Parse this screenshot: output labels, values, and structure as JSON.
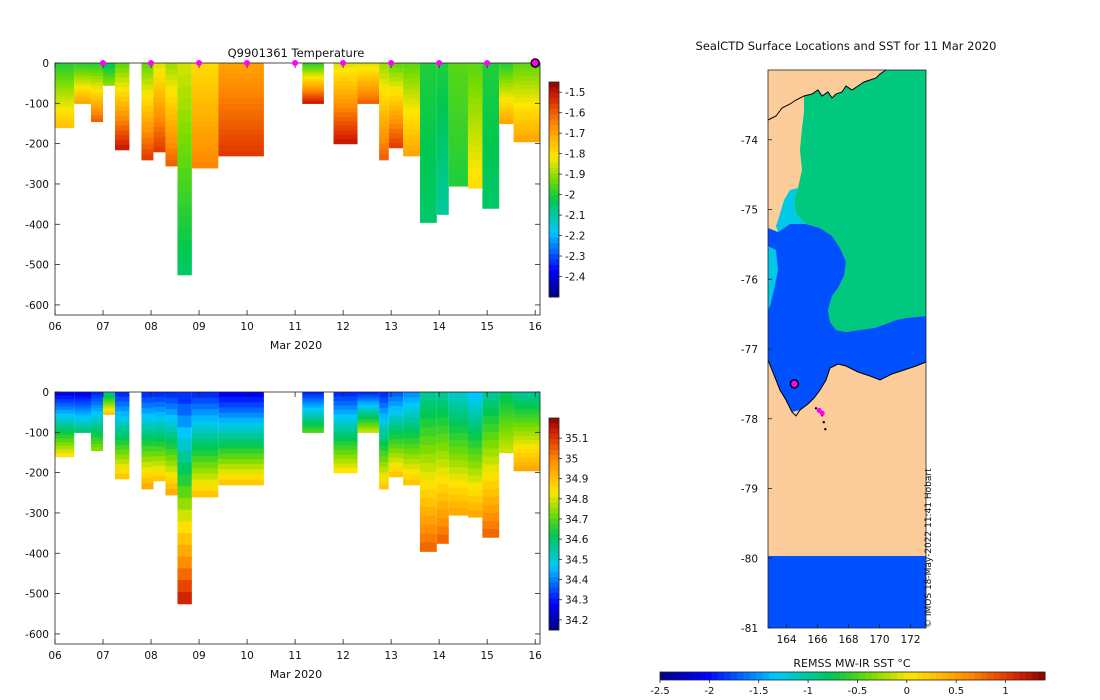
{
  "chart_data": [
    {
      "type": "heatmap",
      "panel": "temperature-section",
      "title": "Q9901361  Temperature",
      "xlabel": "Mar 2020",
      "ylabel": "",
      "x_ticks": [
        "06",
        "07",
        "08",
        "09",
        "10",
        "11",
        "12",
        "13",
        "14",
        "15",
        "16"
      ],
      "x_tick_values": [
        6,
        7,
        8,
        9,
        10,
        11,
        12,
        13,
        14,
        15,
        16
      ],
      "xlim": [
        6,
        16.1
      ],
      "ylim": [
        -625,
        0
      ],
      "y_ticks": [
        "0",
        "-100",
        "-200",
        "-300",
        "-400",
        "-500",
        "-600"
      ],
      "y_tick_values": [
        0,
        -100,
        -200,
        -300,
        -400,
        -500,
        -600
      ],
      "colorbar": {
        "min": -2.5,
        "max": -1.45,
        "ticks": [
          "-1.5",
          "-1.6",
          "-1.7",
          "-1.8",
          "-1.9",
          "-2",
          "-2.1",
          "-2.2",
          "-2.3",
          "-2.4"
        ],
        "tick_values": [
          -1.5,
          -1.6,
          -1.7,
          -1.8,
          -1.9,
          -2.0,
          -2.1,
          -2.2,
          -2.3,
          -2.4
        ]
      },
      "surface_markers_day": [
        7,
        8,
        9,
        10,
        11,
        12,
        13,
        14,
        15
      ],
      "last_marker_day": 16,
      "profiles": [
        {
          "start": 6.0,
          "end": 6.4,
          "depth": 160,
          "top": -2.0,
          "bottom": -1.75
        },
        {
          "start": 6.4,
          "end": 6.75,
          "depth": 100,
          "top": -2.0,
          "bottom": -1.7
        },
        {
          "start": 6.75,
          "end": 7.0,
          "depth": 145,
          "top": -2.0,
          "bottom": -1.6
        },
        {
          "start": 7.0,
          "end": 7.25,
          "depth": 55,
          "top": -2.05,
          "bottom": -1.9
        },
        {
          "start": 7.25,
          "end": 7.55,
          "depth": 215,
          "top": -1.95,
          "bottom": -1.5
        },
        {
          "start": 7.8,
          "end": 8.05,
          "depth": 240,
          "top": -1.95,
          "bottom": -1.55
        },
        {
          "start": 8.05,
          "end": 8.3,
          "depth": 220,
          "top": -1.85,
          "bottom": -1.55
        },
        {
          "start": 8.3,
          "end": 8.55,
          "depth": 255,
          "top": -1.9,
          "bottom": -1.6
        },
        {
          "start": 8.55,
          "end": 8.85,
          "depth": 525,
          "top": -1.85,
          "bottom": -2.05
        },
        {
          "start": 8.85,
          "end": 9.4,
          "depth": 260,
          "top": -1.8,
          "bottom": -1.65
        },
        {
          "start": 9.4,
          "end": 10.35,
          "depth": 230,
          "top": -1.7,
          "bottom": -1.55
        },
        {
          "start": 11.15,
          "end": 11.6,
          "depth": 100,
          "top": -2.0,
          "bottom": -1.5
        },
        {
          "start": 11.8,
          "end": 12.3,
          "depth": 200,
          "top": -1.85,
          "bottom": -1.5
        },
        {
          "start": 12.3,
          "end": 12.75,
          "depth": 100,
          "top": -1.85,
          "bottom": -1.6
        },
        {
          "start": 12.75,
          "end": 12.95,
          "depth": 240,
          "top": -1.9,
          "bottom": -1.6
        },
        {
          "start": 12.95,
          "end": 13.25,
          "depth": 210,
          "top": -1.95,
          "bottom": -1.55
        },
        {
          "start": 13.25,
          "end": 13.6,
          "depth": 230,
          "top": -1.95,
          "bottom": -1.7
        },
        {
          "start": 13.6,
          "end": 13.95,
          "depth": 395,
          "top": -2.0,
          "bottom": -2.05
        },
        {
          "start": 13.95,
          "end": 14.2,
          "depth": 375,
          "top": -2.0,
          "bottom": -2.1
        },
        {
          "start": 14.2,
          "end": 14.6,
          "depth": 305,
          "top": -1.95,
          "bottom": -2.0
        },
        {
          "start": 14.6,
          "end": 14.9,
          "depth": 310,
          "top": -1.95,
          "bottom": -1.8
        },
        {
          "start": 14.9,
          "end": 15.25,
          "depth": 360,
          "top": -2.0,
          "bottom": -2.05
        },
        {
          "start": 15.25,
          "end": 15.55,
          "depth": 150,
          "top": -2.0,
          "bottom": -1.7
        },
        {
          "start": 15.55,
          "end": 16.1,
          "depth": 195,
          "top": -1.95,
          "bottom": -1.7
        }
      ]
    },
    {
      "type": "heatmap",
      "panel": "salinity-section",
      "title": "",
      "xlabel": "Mar 2020",
      "ylabel": "",
      "x_ticks": [
        "06",
        "07",
        "08",
        "09",
        "10",
        "11",
        "12",
        "13",
        "14",
        "15",
        "16"
      ],
      "x_tick_values": [
        6,
        7,
        8,
        9,
        10,
        11,
        12,
        13,
        14,
        15,
        16
      ],
      "xlim": [
        6,
        16.1
      ],
      "ylim": [
        -625,
        0
      ],
      "y_ticks": [
        "0",
        "-100",
        "-200",
        "-300",
        "-400",
        "-500",
        "-600"
      ],
      "y_tick_values": [
        0,
        -100,
        -200,
        -300,
        -400,
        -500,
        -600
      ],
      "colorbar": {
        "min": 34.15,
        "max": 35.2,
        "ticks": [
          "35.1",
          "35",
          "34.9",
          "34.8",
          "34.7",
          "34.6",
          "34.5",
          "34.4",
          "34.3",
          "34.2"
        ],
        "tick_values": [
          35.1,
          35.0,
          34.9,
          34.8,
          34.7,
          34.6,
          34.5,
          34.4,
          34.3,
          34.2
        ]
      },
      "profiles": [
        {
          "start": 6.0,
          "end": 6.4,
          "depth": 160,
          "top": 34.25,
          "bottom": 34.85
        },
        {
          "start": 6.4,
          "end": 6.75,
          "depth": 100,
          "top": 34.25,
          "bottom": 34.6
        },
        {
          "start": 6.75,
          "end": 7.0,
          "depth": 145,
          "top": 34.3,
          "bottom": 34.75
        },
        {
          "start": 7.0,
          "end": 7.25,
          "depth": 55,
          "top": 34.55,
          "bottom": 34.9
        },
        {
          "start": 7.25,
          "end": 7.55,
          "depth": 215,
          "top": 34.3,
          "bottom": 34.9
        },
        {
          "start": 7.8,
          "end": 8.05,
          "depth": 240,
          "top": 34.3,
          "bottom": 34.95
        },
        {
          "start": 8.05,
          "end": 8.3,
          "depth": 220,
          "top": 34.3,
          "bottom": 34.9
        },
        {
          "start": 8.3,
          "end": 8.55,
          "depth": 255,
          "top": 34.3,
          "bottom": 34.95
        },
        {
          "start": 8.55,
          "end": 8.85,
          "depth": 525,
          "top": 34.3,
          "bottom": 35.15
        },
        {
          "start": 8.85,
          "end": 9.4,
          "depth": 260,
          "top": 34.3,
          "bottom": 34.9
        },
        {
          "start": 9.4,
          "end": 10.35,
          "depth": 230,
          "top": 34.25,
          "bottom": 34.9
        },
        {
          "start": 11.15,
          "end": 11.6,
          "depth": 100,
          "top": 34.3,
          "bottom": 34.7
        },
        {
          "start": 11.8,
          "end": 12.3,
          "depth": 200,
          "top": 34.3,
          "bottom": 34.85
        },
        {
          "start": 12.3,
          "end": 12.75,
          "depth": 100,
          "top": 34.3,
          "bottom": 34.8
        },
        {
          "start": 12.75,
          "end": 12.95,
          "depth": 240,
          "top": 34.3,
          "bottom": 34.9
        },
        {
          "start": 12.95,
          "end": 13.25,
          "depth": 210,
          "top": 34.35,
          "bottom": 34.9
        },
        {
          "start": 13.25,
          "end": 13.6,
          "depth": 230,
          "top": 34.4,
          "bottom": 34.9
        },
        {
          "start": 13.6,
          "end": 13.95,
          "depth": 395,
          "top": 34.55,
          "bottom": 35.05
        },
        {
          "start": 13.95,
          "end": 14.2,
          "depth": 375,
          "top": 34.55,
          "bottom": 35.05
        },
        {
          "start": 14.2,
          "end": 14.6,
          "depth": 305,
          "top": 34.5,
          "bottom": 34.95
        },
        {
          "start": 14.6,
          "end": 14.9,
          "depth": 310,
          "top": 34.45,
          "bottom": 34.95
        },
        {
          "start": 14.9,
          "end": 15.25,
          "depth": 360,
          "top": 34.55,
          "bottom": 35.05
        },
        {
          "start": 15.25,
          "end": 15.55,
          "depth": 150,
          "top": 34.6,
          "bottom": 34.8
        },
        {
          "start": 15.55,
          "end": 16.1,
          "depth": 195,
          "top": 34.55,
          "bottom": 34.95
        }
      ]
    },
    {
      "type": "heatmap",
      "panel": "sst-map",
      "title": "SealCTD Surface Locations and SST for 11 Mar 2020",
      "colorbar_label": "REMSS MW-IR SST °C",
      "credit": "© IMOS 18-May-2022 11:41 Hobart",
      "xlim": [
        162.8,
        173.0
      ],
      "ylim": [
        -81.0,
        -73.0
      ],
      "x_ticks": [
        "164",
        "166",
        "168",
        "170",
        "172"
      ],
      "x_tick_values": [
        164,
        166,
        168,
        170,
        172
      ],
      "y_ticks": [
        "-74",
        "-75",
        "-76",
        "-77",
        "-78",
        "-79",
        "-80",
        "-81"
      ],
      "y_tick_values": [
        -74,
        -75,
        -76,
        -77,
        -78,
        -79,
        -80,
        -81
      ],
      "colorbar": {
        "min": -2.5,
        "max": 1.4,
        "ticks": [
          "-2.5",
          "-2",
          "-1.5",
          "-1",
          "-0.5",
          "0",
          "0.5",
          "1"
        ],
        "tick_values": [
          -2.5,
          -2.0,
          -1.5,
          -1.0,
          -0.5,
          0.0,
          0.5,
          1.0
        ]
      },
      "regions": [
        {
          "name": "open-water-north",
          "sst": -0.9
        },
        {
          "name": "cold-ice-edge",
          "sst": -1.75
        },
        {
          "name": "southern-band",
          "sst": -1.75
        }
      ],
      "seal_track": {
        "lon": [
          165.9,
          166.1,
          166.3,
          166.4,
          166.5
        ],
        "lat": [
          -77.85,
          -77.9,
          -77.95,
          -78.05,
          -78.15
        ]
      },
      "seal_surface_locations": [
        {
          "lon": 166.1,
          "lat": -77.88
        },
        {
          "lon": 166.3,
          "lat": -77.92
        }
      ],
      "current_location": {
        "lon": 164.5,
        "lat": -77.5
      }
    }
  ]
}
